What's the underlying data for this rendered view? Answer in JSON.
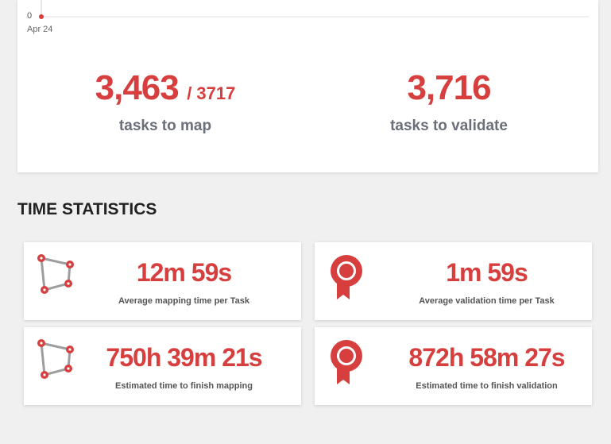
{
  "chart_data": {
    "type": "line",
    "x": [
      "Apr 24"
    ],
    "series": [
      {
        "values": [
          0
        ]
      }
    ],
    "y_ticks": [
      "0"
    ],
    "x_ticks": [
      "Apr 24"
    ],
    "grid": true
  },
  "summary": {
    "mapping": {
      "value": "3,463",
      "total": "/ 3717",
      "label": "tasks to map"
    },
    "validation": {
      "value": "3,716",
      "label": "tasks to validate"
    }
  },
  "time_statistics": {
    "title": "TIME STATISTICS",
    "cards": [
      {
        "value": "12m 59s",
        "label": "Average mapping time per Task",
        "icon": "polygon-icon"
      },
      {
        "value": "1m 59s",
        "label": "Average validation time per Task",
        "icon": "award-ribbon-icon"
      },
      {
        "value": "750h 39m 21s",
        "label": "Estimated time to finish mapping",
        "icon": "polygon-icon"
      },
      {
        "value": "872h 58m 27s",
        "label": "Estimated time to finish validation",
        "icon": "award-ribbon-icon"
      }
    ]
  },
  "colors": {
    "accent": "#d73f3f",
    "label": "#6b6f7a",
    "background": "#f0f0f0"
  }
}
